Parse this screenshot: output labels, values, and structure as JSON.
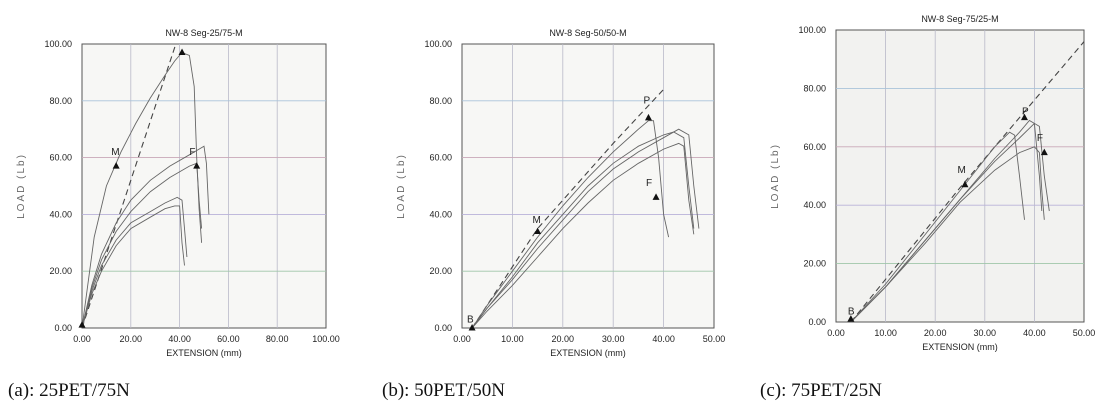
{
  "chart_data": [
    {
      "type": "line",
      "title": "NW-8 Seg-25/75-M",
      "xlabel": "EXTENSION (mm)",
      "ylabel": "LOAD (Lb)",
      "xlim": [
        0,
        100
      ],
      "ylim": [
        0,
        100
      ],
      "x_ticks": [
        "0.00",
        "20.00",
        "40.00",
        "60.00",
        "80.00",
        "100.00"
      ],
      "y_ticks": [
        "0.00",
        "20.00",
        "40.00",
        "60.00",
        "80.00",
        "100.00"
      ],
      "grid": true,
      "series": [
        {
          "style": "dashed",
          "points": [
            [
              0,
              0
            ],
            [
              20,
              52
            ],
            [
              40,
              104
            ]
          ]
        },
        {
          "points": [
            [
              0,
              0
            ],
            [
              5,
              32
            ],
            [
              10,
              50
            ],
            [
              16,
              62
            ],
            [
              22,
              72
            ],
            [
              28,
              81
            ],
            [
              34,
              89
            ],
            [
              38,
              94
            ],
            [
              41,
              97
            ],
            [
              44,
              96
            ],
            [
              46,
              85
            ],
            [
              47,
              60
            ],
            [
              48,
              42
            ],
            [
              49,
              30
            ]
          ]
        },
        {
          "points": [
            [
              0,
              0
            ],
            [
              4,
              15
            ],
            [
              8,
              26
            ],
            [
              14,
              37
            ],
            [
              20,
              45
            ],
            [
              28,
              52
            ],
            [
              36,
              57
            ],
            [
              44,
              61
            ],
            [
              48,
              63
            ],
            [
              50,
              64
            ],
            [
              51,
              58
            ],
            [
              52,
              40
            ]
          ]
        },
        {
          "points": [
            [
              0,
              0
            ],
            [
              4,
              14
            ],
            [
              8,
              24
            ],
            [
              14,
              34
            ],
            [
              20,
              41
            ],
            [
              28,
              48
            ],
            [
              36,
              53
            ],
            [
              44,
              57
            ],
            [
              47,
              58
            ],
            [
              48,
              45
            ],
            [
              49,
              35
            ]
          ]
        },
        {
          "points": [
            [
              0,
              0
            ],
            [
              4,
              13
            ],
            [
              8,
              22
            ],
            [
              14,
              31
            ],
            [
              20,
              37
            ],
            [
              28,
              41
            ],
            [
              34,
              44
            ],
            [
              39,
              46
            ],
            [
              41,
              45
            ],
            [
              42,
              35
            ],
            [
              43,
              25
            ]
          ]
        },
        {
          "points": [
            [
              0,
              0
            ],
            [
              4,
              12
            ],
            [
              8,
              20
            ],
            [
              14,
              29
            ],
            [
              20,
              35
            ],
            [
              28,
              39
            ],
            [
              34,
              42
            ],
            [
              38,
              43
            ],
            [
              40,
              43
            ],
            [
              41,
              30
            ],
            [
              42,
              22
            ]
          ]
        }
      ],
      "markers": [
        {
          "x": 14,
          "y": 57,
          "label": "M",
          "lx": 12,
          "ly": 61
        },
        {
          "x": 41,
          "y": 97,
          "label": "",
          "lx": 0,
          "ly": 0
        },
        {
          "x": 47,
          "y": 57,
          "label": "F",
          "lx": 44,
          "ly": 61
        },
        {
          "x": 0,
          "y": 1,
          "label": "",
          "lx": 0,
          "ly": 0
        }
      ]
    },
    {
      "type": "line",
      "title": "NW-8 Seg-50/50-M",
      "xlabel": "EXTENSION (mm)",
      "ylabel": "LOAD (Lb)",
      "xlim": [
        0,
        50
      ],
      "ylim": [
        0,
        100
      ],
      "x_ticks": [
        "0.00",
        "10.00",
        "20.00",
        "30.00",
        "40.00",
        "50.00"
      ],
      "y_ticks": [
        "0.00",
        "20.00",
        "40.00",
        "60.00",
        "80.00",
        "100.00"
      ],
      "grid": true,
      "series": [
        {
          "style": "dashed",
          "points": [
            [
              2,
              0
            ],
            [
              15,
              35
            ],
            [
              30,
              65
            ],
            [
              40,
              84
            ]
          ]
        },
        {
          "points": [
            [
              2,
              0
            ],
            [
              5,
              8
            ],
            [
              10,
              20
            ],
            [
              15,
              32
            ],
            [
              20,
              43
            ],
            [
              25,
              53
            ],
            [
              30,
              62
            ],
            [
              35,
              70
            ],
            [
              37,
              73
            ],
            [
              38,
              73
            ],
            [
              39,
              60
            ],
            [
              40,
              40
            ],
            [
              41,
              32
            ]
          ]
        },
        {
          "points": [
            [
              2,
              0
            ],
            [
              5,
              7
            ],
            [
              10,
              18
            ],
            [
              15,
              30
            ],
            [
              20,
              40
            ],
            [
              25,
              50
            ],
            [
              30,
              58
            ],
            [
              35,
              64
            ],
            [
              40,
              68
            ],
            [
              42,
              69
            ],
            [
              44,
              67
            ],
            [
              45,
              50
            ],
            [
              46,
              35
            ]
          ]
        },
        {
          "points": [
            [
              2,
              0
            ],
            [
              5,
              7
            ],
            [
              10,
              17
            ],
            [
              15,
              28
            ],
            [
              20,
              38
            ],
            [
              25,
              48
            ],
            [
              30,
              56
            ],
            [
              35,
              62
            ],
            [
              40,
              67
            ],
            [
              43,
              70
            ],
            [
              45,
              68
            ],
            [
              46,
              50
            ],
            [
              47,
              35
            ]
          ]
        },
        {
          "points": [
            [
              2,
              0
            ],
            [
              5,
              6
            ],
            [
              10,
              15
            ],
            [
              15,
              25
            ],
            [
              20,
              35
            ],
            [
              25,
              44
            ],
            [
              30,
              52
            ],
            [
              35,
              58
            ],
            [
              40,
              63
            ],
            [
              43,
              65
            ],
            [
              44,
              64
            ],
            [
              45,
              45
            ],
            [
              46,
              33
            ]
          ]
        }
      ],
      "markers": [
        {
          "x": 15,
          "y": 34,
          "label": "M",
          "lx": 14,
          "ly": 37
        },
        {
          "x": 37,
          "y": 74,
          "label": "P",
          "lx": 36,
          "ly": 79
        },
        {
          "x": 38.5,
          "y": 46,
          "label": "F",
          "lx": 36.5,
          "ly": 50
        },
        {
          "x": 2,
          "y": 0,
          "label": "B",
          "lx": 1,
          "ly": 2
        }
      ]
    },
    {
      "type": "line",
      "title": "NW-8 Seg-75/25-M",
      "xlabel": "EXTENSION (mm)",
      "ylabel": "LOAD (Lb)",
      "xlim": [
        0,
        50
      ],
      "ylim": [
        0,
        100
      ],
      "x_ticks": [
        "0.00",
        "10.00",
        "20.00",
        "30.00",
        "40.00",
        "50.00"
      ],
      "y_ticks": [
        "0.00",
        "20.00",
        "40.00",
        "60.00",
        "80.00",
        "100.00"
      ],
      "grid": true,
      "series": [
        {
          "style": "dashed",
          "points": [
            [
              3,
              0
            ],
            [
              25,
              46
            ],
            [
              52,
              100
            ]
          ]
        },
        {
          "points": [
            [
              3,
              0
            ],
            [
              10,
              13
            ],
            [
              18,
              30
            ],
            [
              25,
              45
            ],
            [
              32,
              60
            ],
            [
              35,
              65
            ],
            [
              36,
              64
            ],
            [
              37,
              50
            ],
            [
              38,
              35
            ]
          ]
        },
        {
          "points": [
            [
              3,
              0
            ],
            [
              10,
              12
            ],
            [
              18,
              28
            ],
            [
              25,
              42
            ],
            [
              32,
              55
            ],
            [
              37,
              63
            ],
            [
              40,
              68
            ],
            [
              41,
              67
            ],
            [
              42,
              50
            ],
            [
              43,
              38
            ]
          ]
        },
        {
          "points": [
            [
              3,
              0
            ],
            [
              10,
              12
            ],
            [
              18,
              28
            ],
            [
              25,
              42
            ],
            [
              32,
              56
            ],
            [
              37,
              65
            ],
            [
              39,
              69
            ],
            [
              40,
              68
            ],
            [
              41,
              50
            ],
            [
              41.5,
              38
            ]
          ]
        },
        {
          "points": [
            [
              3,
              0
            ],
            [
              10,
              12
            ],
            [
              18,
              27
            ],
            [
              25,
              41
            ],
            [
              32,
              52
            ],
            [
              37,
              58
            ],
            [
              40,
              60
            ],
            [
              41,
              58
            ],
            [
              41.5,
              45
            ],
            [
              42,
              35
            ]
          ]
        }
      ],
      "markers": [
        {
          "x": 26,
          "y": 47,
          "label": "M",
          "lx": 24.5,
          "ly": 51
        },
        {
          "x": 38,
          "y": 70,
          "label": "P",
          "lx": 37.5,
          "ly": 71
        },
        {
          "x": 42,
          "y": 58,
          "label": "F",
          "lx": 40.5,
          "ly": 62
        },
        {
          "x": 3,
          "y": 1,
          "label": "B",
          "lx": 2.4,
          "ly": 2.5
        }
      ]
    }
  ],
  "captions": [
    "(a): 25PET/75N",
    "(b): 50PET/50N",
    "(c): 75PET/25N"
  ]
}
